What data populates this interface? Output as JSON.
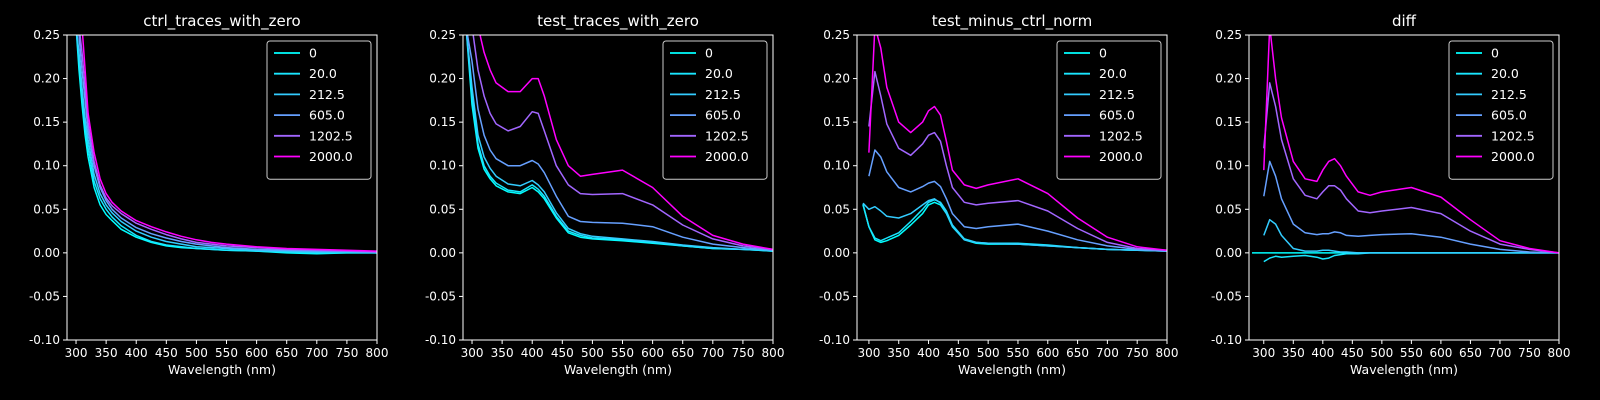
{
  "figure": {
    "background": "#000000",
    "foreground": "#ffffff"
  },
  "legend_colors": [
    "#00ffff",
    "#19e6ff",
    "#33ccff",
    "#66a0ff",
    "#a266ff",
    "#ff00ff"
  ],
  "chart_data": [
    {
      "type": "line",
      "title": "ctrl_traces_with_zero",
      "xlabel": "Wavelength (nm)",
      "ylabel": "",
      "xlim": [
        285,
        800
      ],
      "ylim": [
        -0.1,
        0.25
      ],
      "xticks": [
        300,
        350,
        400,
        450,
        500,
        550,
        600,
        650,
        700,
        750,
        800
      ],
      "yticks": [
        -0.1,
        -0.05,
        0.0,
        0.05,
        0.1,
        0.15,
        0.2,
        0.25
      ],
      "legend_position": "upper right",
      "x": [
        300,
        305,
        310,
        315,
        320,
        330,
        340,
        350,
        360,
        375,
        400,
        425,
        450,
        475,
        500,
        525,
        550,
        600,
        650,
        700,
        750,
        800
      ],
      "series": [
        {
          "name": "0",
          "color": "#00ffff",
          "values": [
            0.26,
            0.21,
            0.17,
            0.135,
            0.11,
            0.075,
            0.055,
            0.044,
            0.037,
            0.027,
            0.018,
            0.012,
            0.008,
            0.006,
            0.005,
            0.004,
            0.003,
            0.002,
            0.0,
            -0.001,
            0.0,
            0.0
          ]
        },
        {
          "name": "20.0",
          "color": "#19e6ff",
          "values": [
            0.26,
            0.22,
            0.18,
            0.145,
            0.12,
            0.082,
            0.062,
            0.05,
            0.041,
            0.031,
            0.02,
            0.013,
            0.009,
            0.007,
            0.005,
            0.004,
            0.003,
            0.002,
            0.001,
            0.0,
            0.0,
            0.0
          ]
        },
        {
          "name": "212.5",
          "color": "#33ccff",
          "values": [
            0.26,
            0.23,
            0.19,
            0.155,
            0.13,
            0.09,
            0.068,
            0.055,
            0.046,
            0.036,
            0.025,
            0.018,
            0.013,
            0.01,
            0.007,
            0.006,
            0.005,
            0.003,
            0.002,
            0.001,
            0.001,
            0.0
          ]
        },
        {
          "name": "605.0",
          "color": "#66a0ff",
          "values": [
            0.26,
            0.25,
            0.21,
            0.175,
            0.14,
            0.1,
            0.075,
            0.06,
            0.05,
            0.04,
            0.029,
            0.022,
            0.017,
            0.013,
            0.01,
            0.008,
            0.006,
            0.004,
            0.003,
            0.002,
            0.002,
            0.001
          ]
        },
        {
          "name": "1202.5",
          "color": "#a266ff",
          "values": [
            0.26,
            0.26,
            0.23,
            0.19,
            0.15,
            0.105,
            0.078,
            0.063,
            0.054,
            0.045,
            0.034,
            0.027,
            0.021,
            0.016,
            0.012,
            0.01,
            0.008,
            0.006,
            0.004,
            0.003,
            0.002,
            0.001
          ]
        },
        {
          "name": "2000.0",
          "color": "#ff00ff",
          "values": [
            0.26,
            0.26,
            0.26,
            0.21,
            0.16,
            0.115,
            0.085,
            0.068,
            0.058,
            0.048,
            0.037,
            0.03,
            0.024,
            0.019,
            0.015,
            0.012,
            0.01,
            0.007,
            0.005,
            0.004,
            0.003,
            0.002
          ]
        }
      ]
    },
    {
      "type": "line",
      "title": "test_traces_with_zero",
      "xlabel": "Wavelength (nm)",
      "ylabel": "",
      "xlim": [
        285,
        800
      ],
      "ylim": [
        -0.1,
        0.25
      ],
      "xticks": [
        300,
        350,
        400,
        450,
        500,
        550,
        600,
        650,
        700,
        750,
        800
      ],
      "yticks": [
        -0.1,
        -0.05,
        0.0,
        0.05,
        0.1,
        0.15,
        0.2,
        0.25
      ],
      "legend_position": "upper right",
      "x": [
        290,
        300,
        310,
        320,
        330,
        340,
        360,
        380,
        400,
        410,
        420,
        440,
        460,
        480,
        500,
        550,
        600,
        650,
        700,
        750,
        800
      ],
      "series": [
        {
          "name": "0",
          "color": "#00ffff",
          "values": [
            0.26,
            0.17,
            0.12,
            0.096,
            0.085,
            0.077,
            0.07,
            0.068,
            0.075,
            0.07,
            0.062,
            0.04,
            0.023,
            0.018,
            0.016,
            0.014,
            0.011,
            0.008,
            0.005,
            0.004,
            0.002
          ]
        },
        {
          "name": "20.0",
          "color": "#19e6ff",
          "values": [
            0.26,
            0.18,
            0.125,
            0.1,
            0.088,
            0.08,
            0.072,
            0.07,
            0.078,
            0.073,
            0.065,
            0.042,
            0.025,
            0.02,
            0.017,
            0.015,
            0.012,
            0.008,
            0.005,
            0.004,
            0.002
          ]
        },
        {
          "name": "212.5",
          "color": "#33ccff",
          "values": [
            0.26,
            0.19,
            0.135,
            0.11,
            0.097,
            0.088,
            0.079,
            0.077,
            0.083,
            0.078,
            0.07,
            0.046,
            0.028,
            0.022,
            0.019,
            0.016,
            0.013,
            0.009,
            0.006,
            0.004,
            0.003
          ]
        },
        {
          "name": "605.0",
          "color": "#66a0ff",
          "values": [
            0.26,
            0.22,
            0.165,
            0.135,
            0.118,
            0.108,
            0.1,
            0.1,
            0.106,
            0.102,
            0.092,
            0.065,
            0.042,
            0.036,
            0.035,
            0.034,
            0.03,
            0.018,
            0.01,
            0.006,
            0.003
          ]
        },
        {
          "name": "1202.5",
          "color": "#a266ff",
          "values": [
            0.26,
            0.26,
            0.21,
            0.18,
            0.16,
            0.148,
            0.14,
            0.145,
            0.162,
            0.16,
            0.14,
            0.1,
            0.078,
            0.068,
            0.067,
            0.068,
            0.055,
            0.032,
            0.016,
            0.008,
            0.004
          ]
        },
        {
          "name": "2000.0",
          "color": "#ff00ff",
          "values": [
            0.26,
            0.26,
            0.26,
            0.23,
            0.21,
            0.195,
            0.185,
            0.185,
            0.2,
            0.2,
            0.18,
            0.13,
            0.1,
            0.088,
            0.09,
            0.095,
            0.075,
            0.042,
            0.02,
            0.01,
            0.004
          ]
        }
      ]
    },
    {
      "type": "line",
      "title": "test_minus_ctrl_norm",
      "xlabel": "Wavelength (nm)",
      "ylabel": "",
      "xlim": [
        280,
        800
      ],
      "ylim": [
        -0.1,
        0.25
      ],
      "xticks": [
        300,
        350,
        400,
        450,
        500,
        550,
        600,
        650,
        700,
        750,
        800
      ],
      "yticks": [
        -0.1,
        -0.05,
        0.0,
        0.05,
        0.1,
        0.15,
        0.2,
        0.25
      ],
      "legend_position": "upper right",
      "x": [
        290,
        300,
        310,
        320,
        330,
        350,
        370,
        390,
        400,
        410,
        420,
        430,
        440,
        460,
        480,
        500,
        550,
        600,
        650,
        700,
        750,
        800
      ],
      "series": [
        {
          "name": "0",
          "color": "#00ffff",
          "values": [
            0.055,
            0.03,
            0.015,
            0.012,
            0.014,
            0.02,
            0.032,
            0.045,
            0.055,
            0.058,
            0.055,
            0.045,
            0.03,
            0.015,
            0.011,
            0.01,
            0.01,
            0.008,
            0.006,
            0.004,
            0.003,
            0.002
          ]
        },
        {
          "name": "20.0",
          "color": "#19e6ff",
          "values": [
            0.056,
            0.03,
            0.017,
            0.014,
            0.017,
            0.023,
            0.036,
            0.05,
            0.058,
            0.061,
            0.058,
            0.048,
            0.032,
            0.016,
            0.012,
            0.011,
            0.011,
            0.009,
            0.006,
            0.004,
            0.003,
            0.002
          ]
        },
        {
          "name": "212.5",
          "color": "#33ccff",
          "values": [
            0.057,
            0.05,
            0.053,
            0.048,
            0.042,
            0.04,
            0.045,
            0.055,
            0.06,
            0.062,
            0.057,
            0.046,
            0.031,
            0.015,
            0.012,
            0.011,
            0.01,
            0.008,
            0.006,
            0.004,
            0.003,
            0.002
          ]
        },
        {
          "name": "605.0",
          "color": "#66a0ff",
          "values": [
            null,
            0.088,
            0.118,
            0.11,
            0.093,
            0.075,
            0.07,
            0.076,
            0.08,
            0.082,
            0.076,
            0.062,
            0.045,
            0.03,
            0.028,
            0.03,
            0.033,
            0.025,
            0.015,
            0.008,
            0.004,
            0.002
          ]
        },
        {
          "name": "1202.5",
          "color": "#a266ff",
          "values": [
            null,
            0.145,
            0.208,
            0.18,
            0.148,
            0.12,
            0.112,
            0.125,
            0.135,
            0.138,
            0.128,
            0.1,
            0.075,
            0.058,
            0.055,
            0.057,
            0.06,
            0.048,
            0.028,
            0.012,
            0.005,
            0.003
          ]
        },
        {
          "name": "2000.0",
          "color": "#ff00ff",
          "values": [
            null,
            0.115,
            0.26,
            0.235,
            0.19,
            0.15,
            0.138,
            0.15,
            0.163,
            0.168,
            0.158,
            0.128,
            0.095,
            0.078,
            0.074,
            0.078,
            0.085,
            0.068,
            0.04,
            0.018,
            0.007,
            0.003
          ]
        }
      ]
    },
    {
      "type": "line",
      "title": "diff",
      "xlabel": "Wavelength (nm)",
      "ylabel": "",
      "xlim": [
        275,
        800
      ],
      "ylim": [
        -0.1,
        0.25
      ],
      "xticks": [
        300,
        350,
        400,
        450,
        500,
        550,
        600,
        650,
        700,
        750,
        800
      ],
      "yticks": [
        -0.1,
        -0.05,
        0.0,
        0.05,
        0.1,
        0.15,
        0.2,
        0.25
      ],
      "legend_position": "upper right",
      "x": [
        280,
        290,
        300,
        310,
        320,
        330,
        350,
        370,
        390,
        400,
        410,
        420,
        430,
        440,
        460,
        480,
        500,
        550,
        600,
        650,
        700,
        750,
        800
      ],
      "series": [
        {
          "name": "0",
          "color": "#00ffff",
          "values": [
            0.0,
            0.0,
            0.0,
            0.0,
            0.0,
            0.0,
            0.0,
            0.0,
            0.0,
            0.0,
            0.0,
            0.0,
            0.0,
            0.0,
            0.0,
            0.0,
            0.0,
            0.0,
            0.0,
            0.0,
            0.0,
            0.0,
            0.0
          ]
        },
        {
          "name": "20.0",
          "color": "#19e6ff",
          "values": [
            null,
            null,
            -0.01,
            -0.006,
            -0.004,
            -0.005,
            -0.004,
            -0.003,
            -0.005,
            -0.007,
            -0.006,
            -0.003,
            -0.002,
            -0.001,
            -0.001,
            0.0,
            0.0,
            0.0,
            0.0,
            0.0,
            0.0,
            0.0,
            0.0
          ]
        },
        {
          "name": "212.5",
          "color": "#33ccff",
          "values": [
            null,
            null,
            0.02,
            0.038,
            0.033,
            0.02,
            0.005,
            0.002,
            0.002,
            0.003,
            0.003,
            0.002,
            0.001,
            0.001,
            0.0,
            0.0,
            0.0,
            0.0,
            0.0,
            0.0,
            0.0,
            0.0,
            0.0
          ]
        },
        {
          "name": "605.0",
          "color": "#66a0ff",
          "values": [
            null,
            null,
            0.065,
            0.105,
            0.088,
            0.062,
            0.033,
            0.023,
            0.021,
            0.022,
            0.022,
            0.024,
            0.023,
            0.02,
            0.019,
            0.02,
            0.021,
            0.022,
            0.018,
            0.01,
            0.004,
            0.001,
            0.0
          ]
        },
        {
          "name": "1202.5",
          "color": "#a266ff",
          "values": [
            null,
            null,
            0.12,
            0.195,
            0.168,
            0.13,
            0.085,
            0.066,
            0.062,
            0.07,
            0.077,
            0.077,
            0.072,
            0.062,
            0.048,
            0.046,
            0.048,
            0.052,
            0.045,
            0.025,
            0.01,
            0.004,
            0.0
          ]
        },
        {
          "name": "2000.0",
          "color": "#ff00ff",
          "values": [
            null,
            null,
            0.095,
            0.26,
            0.2,
            0.155,
            0.105,
            0.085,
            0.082,
            0.095,
            0.105,
            0.108,
            0.1,
            0.088,
            0.07,
            0.066,
            0.07,
            0.075,
            0.064,
            0.038,
            0.014,
            0.005,
            0.0
          ]
        }
      ]
    }
  ]
}
